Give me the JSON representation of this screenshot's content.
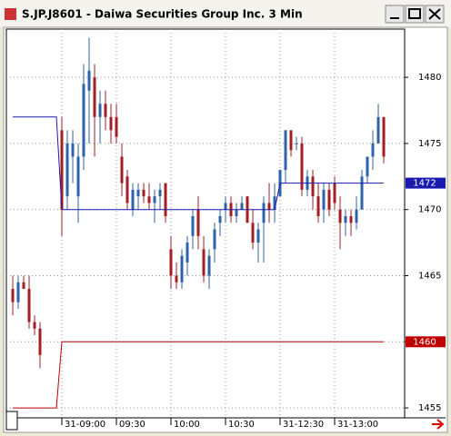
{
  "chart_data": {
    "type": "candlestick",
    "title": "S.JP.J8601 - Daiwa Securities Group Inc. 3 Min",
    "x": [
      0,
      1,
      2,
      3,
      4,
      5,
      9,
      10,
      11,
      12,
      13,
      14,
      15,
      16,
      17,
      18,
      19,
      20,
      21,
      22,
      23,
      24,
      25,
      26,
      27,
      28,
      29,
      30,
      31,
      32,
      33,
      34,
      35,
      36,
      37,
      38,
      39,
      40,
      41,
      42,
      43,
      44,
      45,
      46,
      47,
      48,
      49,
      50,
      51,
      52,
      53,
      54,
      55,
      56,
      57,
      58,
      59,
      60,
      61,
      62,
      63,
      64,
      65,
      66,
      67,
      68
    ],
    "open": [
      1464,
      1463,
      1464.5,
      1464,
      1461.5,
      1461,
      1476,
      1471,
      1474,
      1471,
      1474,
      1479,
      1480,
      1477,
      1478,
      1477,
      1477,
      1474,
      1472.5,
      1470,
      1471,
      1471.5,
      1471,
      1470.5,
      1471,
      1472,
      1467,
      1465,
      1464.5,
      1466,
      1468,
      1470,
      1467,
      1465,
      1467,
      1469,
      1470,
      1470.5,
      1469.5,
      1470,
      1471,
      1469,
      1467.5,
      1469,
      1470.5,
      1470,
      1471,
      1473,
      1476,
      1475,
      1475,
      1471.5,
      1472.5,
      1471,
      1470,
      1471.5,
      1472,
      1470,
      1469,
      1469.5,
      1469,
      1470,
      1472.5,
      1474,
      1475,
      1477
    ],
    "high": [
      1465,
      1465,
      1465,
      1465,
      1462,
      1461.5,
      1477,
      1476,
      1476,
      1475,
      1481,
      1483,
      1481,
      1479,
      1479,
      1478,
      1478,
      1475,
      1473,
      1472,
      1472,
      1472,
      1472,
      1471.5,
      1472,
      1472,
      1468,
      1466,
      1467,
      1468,
      1470,
      1471,
      1468,
      1467,
      1469,
      1470,
      1471,
      1471,
      1470.5,
      1471,
      1471,
      1470,
      1469,
      1471,
      1472,
      1472,
      1473,
      1476,
      1476,
      1475.5,
      1475.5,
      1473,
      1473,
      1472,
      1472,
      1472,
      1472.5,
      1471,
      1470,
      1470,
      1471,
      1473,
      1474,
      1476,
      1478,
      1477
    ],
    "low": [
      1462,
      1462.5,
      1464,
      1461,
      1460.5,
      1458,
      1468,
      1470,
      1472,
      1469,
      1473,
      1475,
      1474,
      1475,
      1476,
      1475,
      1475,
      1471,
      1470,
      1469.5,
      1470,
      1470.5,
      1470,
      1469,
      1470,
      1469,
      1464,
      1464,
      1464,
      1465,
      1467,
      1467,
      1464.5,
      1464,
      1466,
      1468,
      1469,
      1469,
      1469,
      1470,
      1469,
      1467,
      1466,
      1466,
      1469,
      1469,
      1471,
      1472,
      1474,
      1474.5,
      1471,
      1471,
      1470,
      1469,
      1469,
      1469.5,
      1470,
      1467,
      1468,
      1468,
      1468.5,
      1470,
      1472,
      1473,
      1475,
      1473.5
    ],
    "close": [
      1463,
      1464.5,
      1464,
      1461.5,
      1461,
      1459,
      1470,
      1475,
      1475,
      1474,
      1479.5,
      1480.5,
      1477,
      1478,
      1477,
      1476,
      1475.5,
      1472,
      1470.5,
      1471.5,
      1471.5,
      1471,
      1470.5,
      1471,
      1471.5,
      1469.5,
      1465,
      1464.5,
      1466.5,
      1467.5,
      1469.5,
      1468,
      1465,
      1466.5,
      1468.5,
      1469.5,
      1470.5,
      1469.5,
      1470,
      1470.5,
      1469,
      1467.5,
      1468.5,
      1470.5,
      1470,
      1471,
      1473,
      1476,
      1474.5,
      1475,
      1471.5,
      1472.5,
      1471,
      1469.5,
      1471.5,
      1470,
      1470.5,
      1469,
      1469.5,
      1469,
      1470,
      1472.5,
      1474,
      1475,
      1477,
      1474
    ],
    "up_color": "#2f63a8",
    "down_color": "#a31f24",
    "lines": [
      {
        "color": "#1a1ab0",
        "x": [
          0,
          8,
          9,
          48,
          49,
          68
        ],
        "values": [
          1477,
          1477,
          1470,
          1470,
          1472,
          1472
        ]
      },
      {
        "color": "#c00000",
        "x": [
          0,
          8,
          9,
          68
        ],
        "values": [
          1455,
          1455,
          1460,
          1460
        ]
      }
    ],
    "xlim": [
      -1.17,
      71.83
    ],
    "xticks": [
      {
        "value": 9,
        "label": "31-09:00"
      },
      {
        "value": 19,
        "label": "09:30"
      },
      {
        "value": 29,
        "label": "10:00"
      },
      {
        "value": 39,
        "label": "10:30"
      },
      {
        "value": 49,
        "label": "31-12:30"
      },
      {
        "value": 59,
        "label": "31-13:00"
      }
    ],
    "ylim": [
      1454.25,
      1483.65
    ],
    "yticks": [
      1455,
      1460,
      1465,
      1470,
      1475,
      1480
    ],
    "grid": true
  }
}
